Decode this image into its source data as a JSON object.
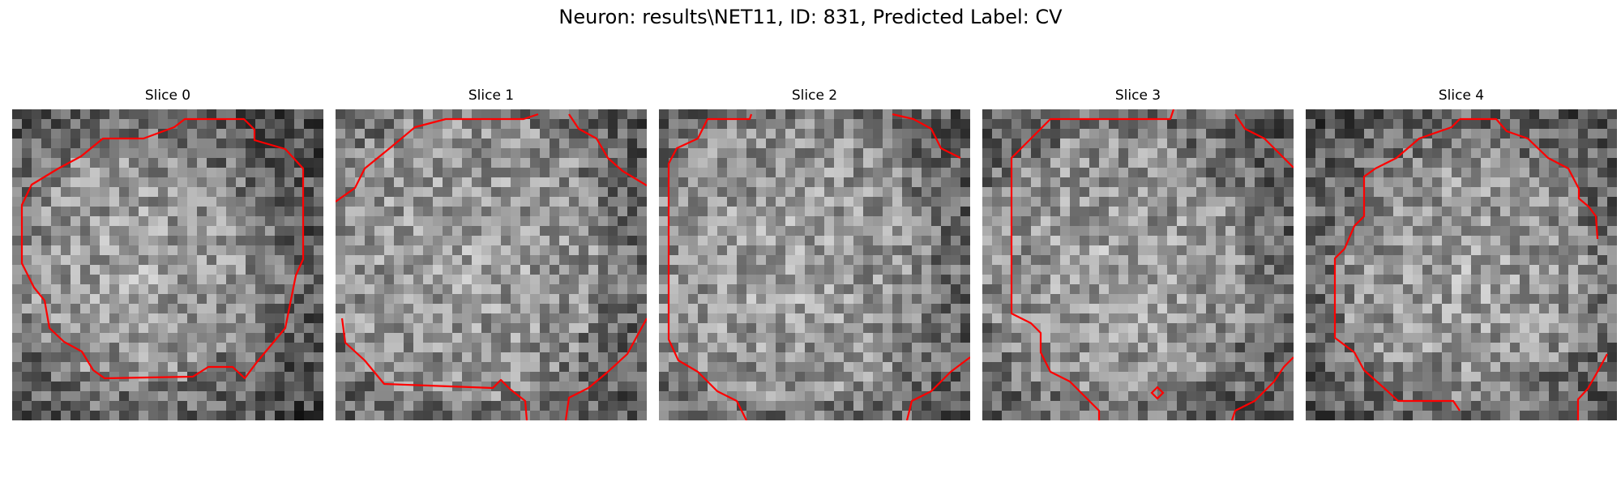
{
  "figure": {
    "title": "Neuron: results\\NET11, ID: 831, Predicted Label: CV"
  },
  "colors": {
    "contour": "#ff0000",
    "background": "#ffffff"
  },
  "panels": [
    {
      "title": "Slice 0"
    },
    {
      "title": "Slice 1"
    },
    {
      "title": "Slice 2"
    },
    {
      "title": "Slice 3"
    },
    {
      "title": "Slice 4"
    }
  ]
}
